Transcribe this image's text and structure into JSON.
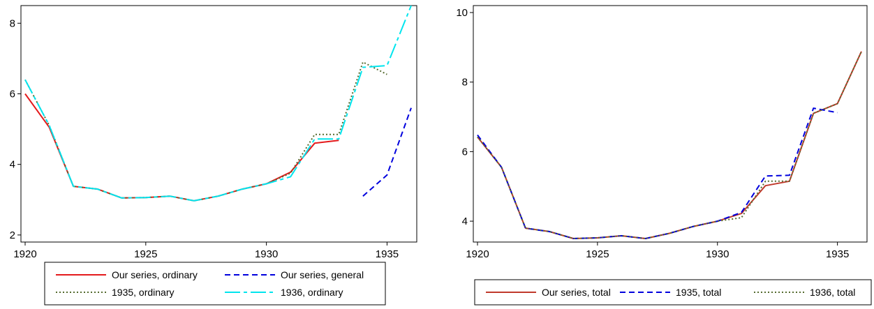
{
  "chart_data": [
    {
      "type": "line",
      "title": "",
      "xlabel": "",
      "ylabel": "",
      "xlim": [
        1920,
        1936
      ],
      "ylim": [
        1.8,
        8.5
      ],
      "xticks": [
        1920,
        1925,
        1930,
        1935
      ],
      "yticks": [
        2,
        4,
        6,
        8
      ],
      "grid": false,
      "legend_position": "bottom",
      "series": [
        {
          "name": "Our series, ordinary",
          "color": "#e41a1c",
          "style": "solid",
          "x": [
            1920,
            1921,
            1922,
            1923,
            1924,
            1925,
            1926,
            1927,
            1928,
            1929,
            1930,
            1931,
            1932,
            1933
          ],
          "y": [
            6.0,
            5.05,
            3.38,
            3.3,
            3.05,
            3.06,
            3.1,
            2.97,
            3.1,
            3.3,
            3.45,
            3.78,
            4.6,
            4.68
          ]
        },
        {
          "name": "Our series, general",
          "color": "#0000dd",
          "style": "dashed",
          "x": [
            1934,
            1935,
            1936
          ],
          "y": [
            3.1,
            3.7,
            5.6
          ]
        },
        {
          "name": "1935, ordinary",
          "color": "#556b2f",
          "style": "dotted",
          "x": [
            1920,
            1921,
            1922,
            1923,
            1924,
            1925,
            1926,
            1927,
            1928,
            1929,
            1930,
            1931,
            1932,
            1933,
            1934,
            1935
          ],
          "y": [
            6.4,
            5.1,
            3.38,
            3.3,
            3.05,
            3.06,
            3.1,
            2.97,
            3.1,
            3.3,
            3.45,
            3.75,
            4.85,
            4.85,
            6.9,
            6.55
          ]
        },
        {
          "name": "1936, ordinary",
          "color": "#00e5ee",
          "style": "longdash",
          "x": [
            1920,
            1921,
            1922,
            1923,
            1924,
            1925,
            1926,
            1927,
            1928,
            1929,
            1930,
            1931,
            1932,
            1933,
            1934,
            1935,
            1936
          ],
          "y": [
            6.4,
            5.1,
            3.38,
            3.3,
            3.05,
            3.06,
            3.1,
            2.97,
            3.1,
            3.3,
            3.45,
            3.65,
            4.72,
            4.72,
            6.75,
            6.8,
            8.5
          ]
        }
      ],
      "legend": [
        [
          "Our series, ordinary",
          "Our series, general"
        ],
        [
          "1935, ordinary",
          "1936, ordinary"
        ]
      ]
    },
    {
      "type": "line",
      "title": "",
      "xlabel": "",
      "ylabel": "",
      "xlim": [
        1920,
        1936
      ],
      "ylim": [
        3.4,
        10.2
      ],
      "xticks": [
        1920,
        1925,
        1930,
        1935
      ],
      "yticks": [
        4,
        6,
        8,
        10
      ],
      "grid": false,
      "legend_position": "bottom",
      "series": [
        {
          "name": "Our series, total",
          "color": "#c0392b",
          "style": "solid",
          "x": [
            1920,
            1921,
            1922,
            1923,
            1924,
            1925,
            1926,
            1927,
            1928,
            1929,
            1930,
            1931,
            1932,
            1933,
            1934,
            1935,
            1936
          ],
          "y": [
            6.42,
            5.55,
            3.8,
            3.7,
            3.5,
            3.52,
            3.58,
            3.5,
            3.65,
            3.85,
            4.0,
            4.22,
            5.02,
            5.15,
            7.1,
            7.38,
            8.88
          ]
        },
        {
          "name": "1935, total",
          "color": "#0000dd",
          "style": "dashed",
          "x": [
            1920,
            1921,
            1922,
            1923,
            1924,
            1925,
            1926,
            1927,
            1928,
            1929,
            1930,
            1931,
            1932,
            1933,
            1934,
            1935
          ],
          "y": [
            6.48,
            5.55,
            3.8,
            3.7,
            3.5,
            3.52,
            3.58,
            3.5,
            3.65,
            3.85,
            4.0,
            4.25,
            5.3,
            5.32,
            7.25,
            7.12
          ]
        },
        {
          "name": "1936, total",
          "color": "#556b2f",
          "style": "dotted",
          "x": [
            1920,
            1921,
            1922,
            1923,
            1924,
            1925,
            1926,
            1927,
            1928,
            1929,
            1930,
            1931,
            1932,
            1933,
            1934,
            1935,
            1936
          ],
          "y": [
            6.42,
            5.55,
            3.8,
            3.7,
            3.5,
            3.52,
            3.58,
            3.5,
            3.65,
            3.85,
            4.0,
            4.1,
            5.15,
            5.15,
            7.1,
            7.38,
            8.88
          ]
        }
      ],
      "legend": [
        [
          "Our series, total",
          "1935, total",
          "1936, total"
        ]
      ]
    }
  ]
}
